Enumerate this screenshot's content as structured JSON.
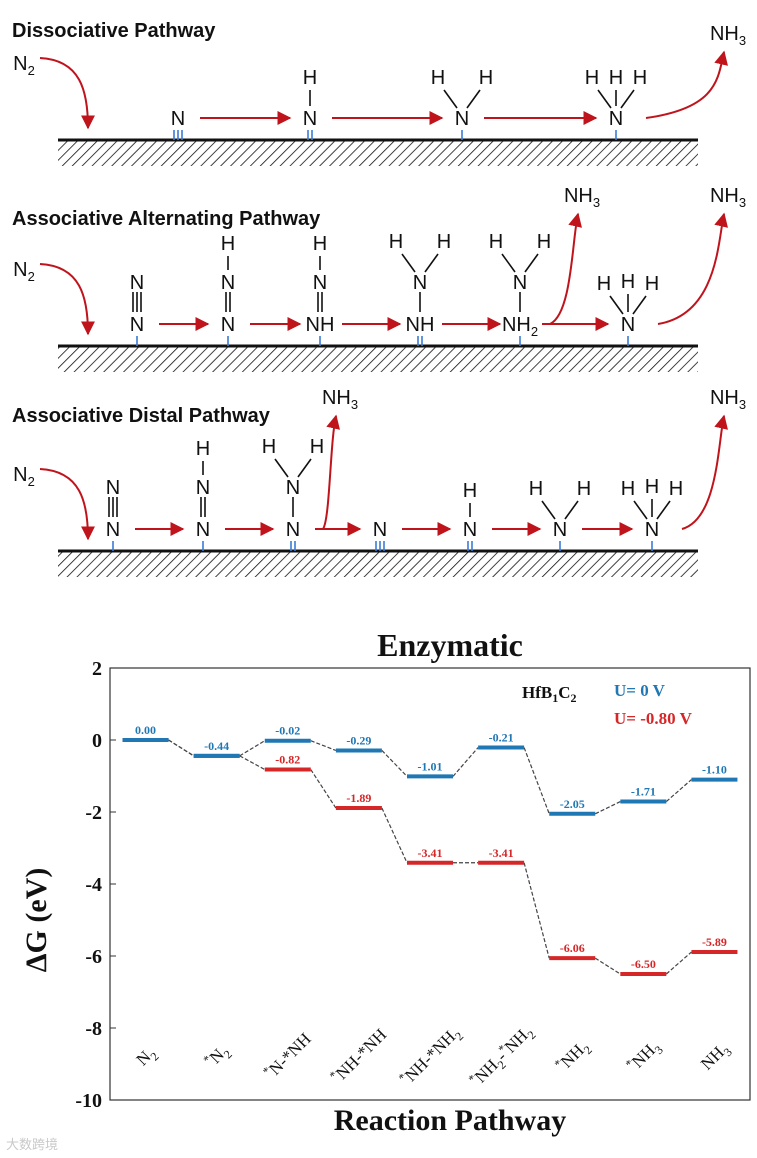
{
  "scheme": {
    "panels": [
      {
        "title": "Dissociative Pathway",
        "n2_label": "N",
        "n2_sub": "2",
        "species": [
          {
            "atoms": [
              {
                "t": "N"
              }
            ],
            "bonds": [],
            "surface": 3
          },
          {
            "atoms": [
              {
                "t": "N"
              },
              {
                "t": "H",
                "pos": "up"
              }
            ],
            "bonds": [],
            "surface": 2
          },
          {
            "atoms": [
              {
                "t": "N"
              },
              {
                "t": "H",
                "pos": "ul"
              },
              {
                "t": "H",
                "pos": "ur"
              }
            ],
            "bonds": [],
            "surface": 1
          },
          {
            "atoms": [
              {
                "t": "N"
              },
              {
                "t": "H",
                "pos": "ul"
              },
              {
                "t": "H",
                "pos": "up"
              },
              {
                "t": "H",
                "pos": "ur"
              }
            ],
            "bonds": [],
            "surface": 1
          }
        ],
        "products": [
          {
            "label": "NH",
            "sub": "3"
          }
        ]
      },
      {
        "title": "Associative Alternating Pathway",
        "n2_label": "N",
        "n2_sub": "2",
        "species": [
          {
            "top": "N",
            "mid_bond": 3,
            "bottom": "N",
            "surface": 1
          },
          {
            "h_top": "H",
            "top": "N",
            "mid_bond": 2,
            "bottom": "N",
            "surface": 1
          },
          {
            "h_top": "H",
            "top": "N",
            "mid_bond": 2,
            "bottom": "NH",
            "surface": 1
          },
          {
            "h_pair": [
              "H",
              "H"
            ],
            "top": "N",
            "mid_bond": 1,
            "bottom": "NH",
            "surface": 2
          },
          {
            "h_pair": [
              "H",
              "H"
            ],
            "top": "N",
            "mid_bond": 1,
            "bottom": "NH",
            "bottom_sub": "2",
            "surface": 1
          },
          {
            "h_three": [
              "H",
              "H",
              "H"
            ],
            "bottom": "N",
            "surface": 1
          }
        ],
        "products": [
          {
            "label": "NH",
            "sub": "3"
          },
          {
            "label": "NH",
            "sub": "3"
          }
        ]
      },
      {
        "title": "Associative Distal Pathway",
        "n2_label": "N",
        "n2_sub": "2",
        "species": [
          {
            "top": "N",
            "mid_bond": 3,
            "bottom": "N",
            "surface": 1
          },
          {
            "h_top": "H",
            "top": "N",
            "mid_bond": 2,
            "bottom": "N",
            "surface": 1
          },
          {
            "h_pair": [
              "H",
              "H"
            ],
            "top": "N",
            "mid_bond": 1,
            "bottom": "N",
            "surface": 2
          },
          {
            "bottom": "N",
            "surface": 3
          },
          {
            "h_top": "H",
            "bottom": "N",
            "surface": 2
          },
          {
            "h_pair": [
              "H",
              "H"
            ],
            "bottom": "N",
            "surface": 1
          },
          {
            "h_three": [
              "H",
              "H",
              "H"
            ],
            "bottom": "N",
            "surface": 1
          }
        ],
        "products": [
          {
            "label": "NH",
            "sub": "3"
          },
          {
            "label": "NH",
            "sub": "3"
          }
        ]
      }
    ]
  },
  "chart_data": {
    "type": "energy-level",
    "title": "Enzymatic",
    "xlabel": "Reaction Pathway",
    "ylabel": "ΔG (eV)",
    "ylim": [
      -10,
      2
    ],
    "yticks": [
      "2",
      "0",
      "-2",
      "-4",
      "-6",
      "-8",
      "-10"
    ],
    "categories": [
      {
        "star": "",
        "text": "N",
        "sub": "2"
      },
      {
        "star": "*",
        "text": "N",
        "sub": "2"
      },
      {
        "star": "*",
        "text": "N-*NH",
        "sub": ""
      },
      {
        "star": "*",
        "text": "NH-*NH",
        "sub": ""
      },
      {
        "star": "*",
        "text": "NH-*NH",
        "sub": "2"
      },
      {
        "star": "*",
        "text": "NH",
        "sub": "2",
        "tail": "-*NH",
        "tail_sub": "2"
      },
      {
        "star": "*",
        "text": "NH",
        "sub": "2"
      },
      {
        "star": "*",
        "text": "NH",
        "sub": "3"
      },
      {
        "star": "",
        "text": "NH",
        "sub": "3"
      }
    ],
    "legend": {
      "material": "HfB",
      "material_sub1": "1",
      "material_mid": "C",
      "material_sub2": "2",
      "placement": "top-right"
    },
    "series": [
      {
        "name": "U=  0 V",
        "color": "#1f77b4",
        "values": [
          0.0,
          -0.44,
          -0.02,
          -0.29,
          -1.01,
          -0.21,
          -2.05,
          -1.71,
          -1.1
        ],
        "labels": [
          "0.00",
          "-0.44",
          "-0.02",
          "-0.29",
          "-1.01",
          "-0.21",
          "-2.05",
          "-1.71",
          "-1.10"
        ]
      },
      {
        "name": "U= -0.80 V",
        "color": "#d62728",
        "values": [
          0.0,
          -0.44,
          -0.82,
          -1.89,
          -3.41,
          -3.41,
          -6.06,
          -6.5,
          -5.89
        ],
        "labels": [
          "",
          "",
          "-0.82",
          "-1.89",
          "-3.41",
          "-3.41",
          "-6.06",
          "-6.50",
          "-5.89"
        ]
      }
    ]
  },
  "watermark": "大数跨境"
}
